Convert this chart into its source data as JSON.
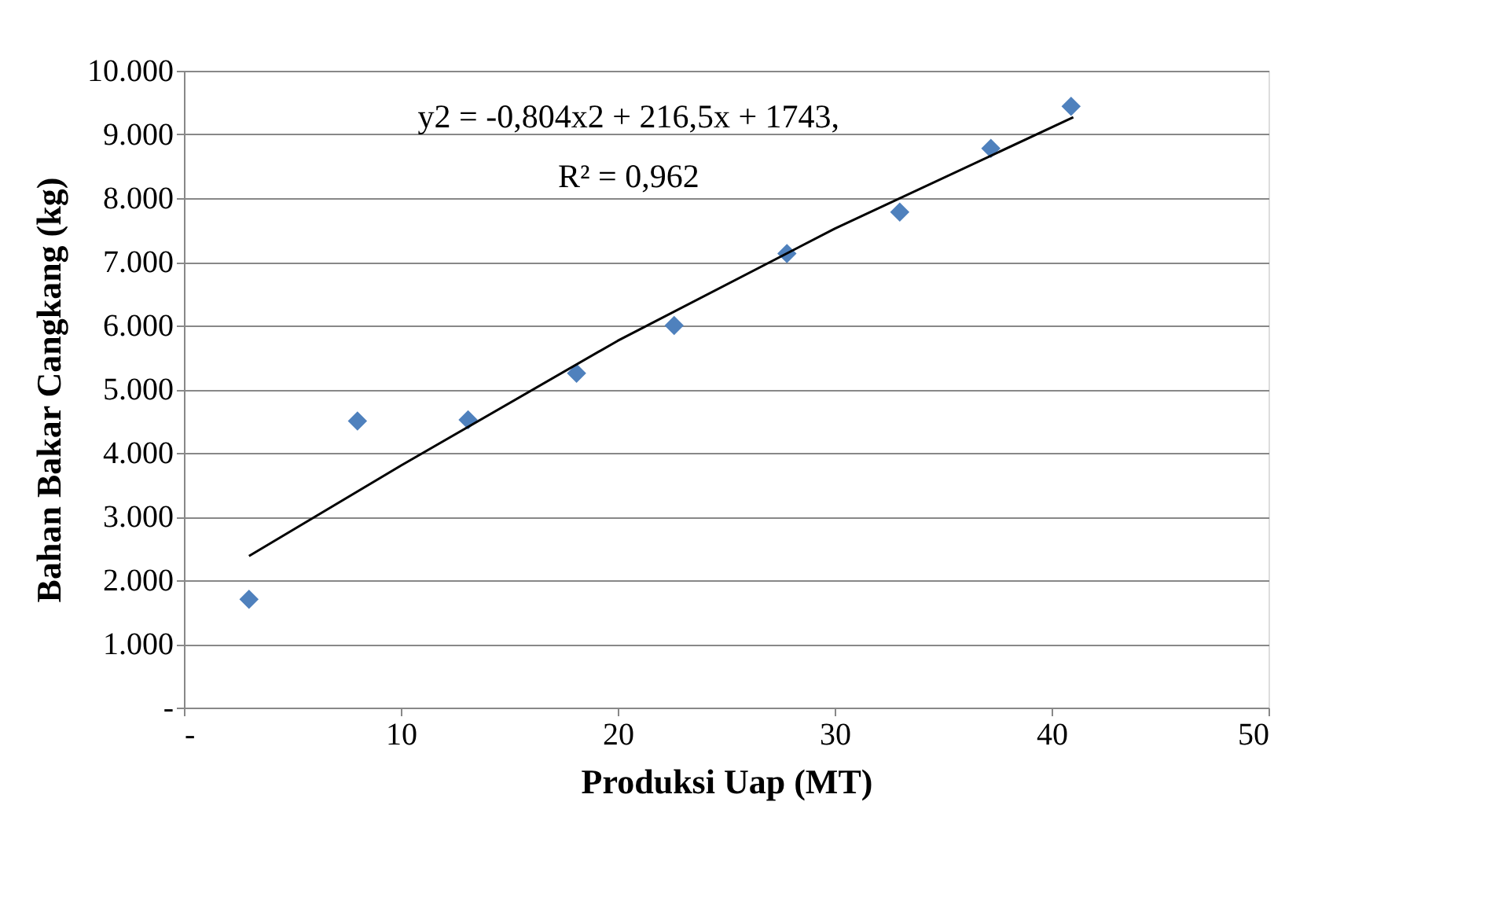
{
  "chart_data": {
    "type": "scatter",
    "xlabel": "Produksi Uap (MT)",
    "ylabel": "Bahan Bakar Cangkang (kg)",
    "annotations": [
      "y2 = -0,804x2 + 216,5x + 1743,",
      "R² = 0,962"
    ],
    "series": [
      {
        "color": "#4f81bd",
        "marker": "diamond",
        "x": [
          3.0,
          8.0,
          13.1,
          18.1,
          22.6,
          27.8,
          33.0,
          37.2,
          40.9
        ],
        "values": [
          1700,
          4500,
          4520,
          5250,
          6000,
          7130,
          7780,
          8780,
          9440
        ]
      },
      {
        "type": "line",
        "color": "#000000",
        "marker": "none",
        "line_style": "solid",
        "x": [
          3,
          10,
          20,
          30,
          41
        ],
        "values": [
          2380,
          3800,
          5760,
          7520,
          9270
        ]
      }
    ],
    "xlim": [
      0,
      50
    ],
    "xticks": [
      {
        "value": 0,
        "label": "-"
      },
      10,
      20,
      30,
      40,
      50
    ],
    "ylim": [
      0,
      10000
    ],
    "yticks": [
      {
        "value": 0,
        "label": "-"
      },
      {
        "value": 1000,
        "label": "1.000"
      },
      {
        "value": 2000,
        "label": "2.000"
      },
      {
        "value": 3000,
        "label": "3.000"
      },
      {
        "value": 4000,
        "label": "4.000"
      },
      {
        "value": 5000,
        "label": "5.000"
      },
      {
        "value": 6000,
        "label": "6.000"
      },
      {
        "value": 7000,
        "label": "7.000"
      },
      {
        "value": 8000,
        "label": "8.000"
      },
      {
        "value": 9000,
        "label": "9.000"
      },
      {
        "value": 10000,
        "label": "10.000"
      }
    ],
    "grid": "y",
    "legend": false
  }
}
